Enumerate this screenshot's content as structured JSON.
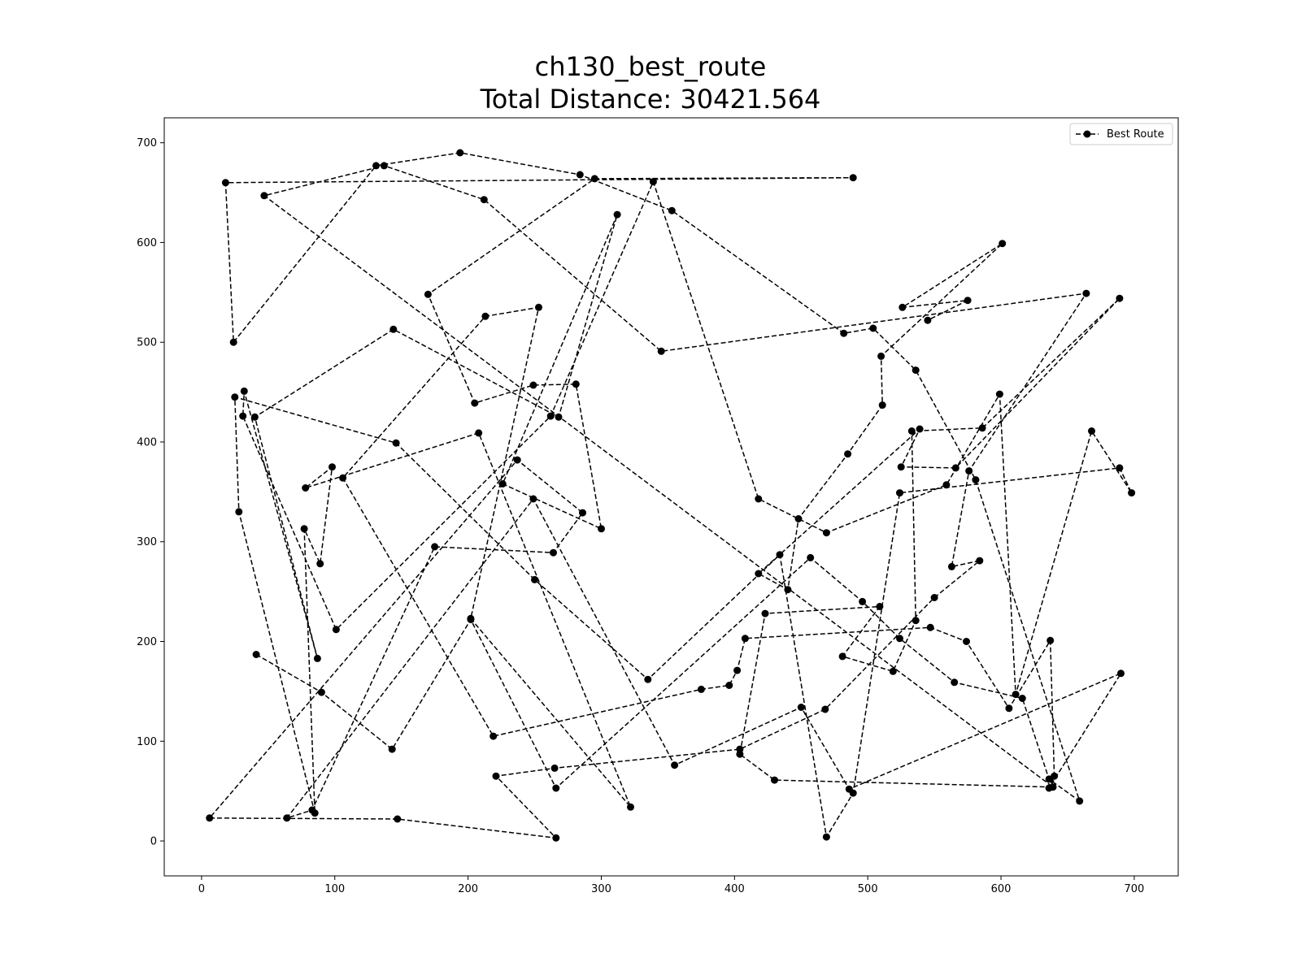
{
  "chart_data": {
    "type": "line",
    "title": "ch130_best_route",
    "subtitle": "Total Distance: 30421.564",
    "xlabel": "",
    "ylabel": "",
    "xlim": [
      -28,
      733
    ],
    "ylim": [
      -35,
      725
    ],
    "xticks": [
      0,
      100,
      200,
      300,
      400,
      500,
      600,
      700
    ],
    "yticks": [
      0,
      100,
      200,
      300,
      400,
      500,
      600,
      700
    ],
    "grid": false,
    "legend_position": "top-right",
    "line_color": "#000000",
    "line_style": "dashed",
    "marker": "circle",
    "series": [
      {
        "name": "Best Route",
        "x": [
          41,
          90,
          143,
          202,
          266,
          457,
          496,
          524,
          565,
          616,
          636,
          659,
          581,
          536,
          504,
          482,
          353,
          284,
          194,
          131,
          24,
          18,
          489,
          295,
          170,
          205,
          249,
          281,
          300,
          226,
          312,
          268,
          144,
          40,
          87,
          32,
          31,
          101,
          262,
          339,
          418,
          469,
          559,
          599,
          611,
          668,
          698,
          689,
          524,
          489,
          469,
          434,
          335,
          250,
          146,
          25,
          28,
          85,
          77,
          89,
          98,
          78,
          208,
          322,
          202,
          253,
          213,
          106,
          219,
          375,
          396,
          402,
          408,
          547,
          574,
          606,
          637,
          640,
          636,
          690,
          486,
          450,
          355,
          249,
          64,
          83,
          175,
          264,
          286,
          237,
          6,
          147,
          266,
          221,
          265,
          404,
          468,
          550,
          584,
          563,
          576,
          664,
          345,
          212,
          137,
          47,
          639,
          430,
          404,
          423,
          509,
          481,
          519,
          536,
          533,
          586,
          689,
          566,
          525,
          539,
          418,
          440,
          448,
          485,
          511,
          510,
          601,
          526,
          575,
          545
        ],
        "y": [
          187,
          149,
          92,
          222,
          53,
          284,
          240,
          203,
          159,
          143,
          62,
          40,
          362,
          472,
          514,
          509,
          632,
          668,
          690,
          677,
          500,
          660,
          665,
          664,
          548,
          439,
          457,
          458,
          313,
          358,
          628,
          425,
          513,
          425,
          183,
          451,
          426,
          212,
          426,
          661,
          343,
          309,
          357,
          448,
          147,
          411,
          349,
          374,
          349,
          48,
          4,
          287,
          162,
          262,
          399,
          445,
          330,
          28,
          313,
          278,
          375,
          354,
          409,
          34,
          223,
          535,
          526,
          364,
          105,
          152,
          156,
          171,
          203,
          214,
          200,
          133,
          201,
          65,
          53,
          168,
          52,
          134,
          76,
          343,
          23,
          31,
          295,
          289,
          329,
          382,
          23,
          22,
          3,
          65,
          73,
          92,
          132,
          244,
          281,
          275,
          371,
          549,
          491,
          643,
          677,
          647,
          54,
          61,
          87,
          228,
          235,
          185,
          170,
          221,
          411,
          414,
          544,
          374,
          375,
          413,
          268,
          252,
          323,
          388,
          437,
          486,
          599,
          535,
          542,
          522
        ]
      }
    ]
  }
}
